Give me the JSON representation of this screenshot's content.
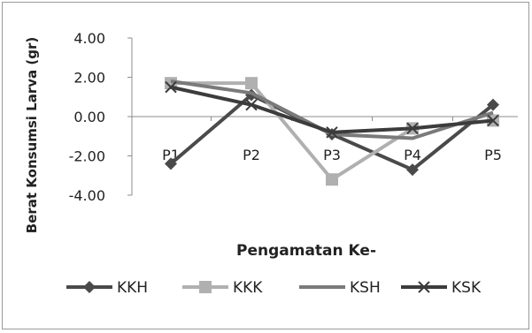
{
  "chart_data": {
    "type": "line",
    "title": "",
    "xlabel": "Pengamatan Ke-",
    "ylabel": "Berat Konsumsi Larva (gr)",
    "categories": [
      "P1",
      "P2",
      "P3",
      "P4",
      "P5"
    ],
    "ylim": [
      -4,
      4
    ],
    "yticks": [
      "4.00",
      "2.00",
      "0.00",
      "-2.00",
      "-4.00"
    ],
    "grid": false,
    "legend_position": "bottom",
    "series": [
      {
        "name": "KKH",
        "values": [
          -2.4,
          1.1,
          -0.9,
          -2.7,
          0.6
        ],
        "color": "#4a4a4a",
        "marker": "diamond"
      },
      {
        "name": "KKK",
        "values": [
          1.7,
          1.7,
          -3.2,
          -0.6,
          -0.2
        ],
        "color": "#b0b0b0",
        "marker": "square"
      },
      {
        "name": "KSH",
        "values": [
          1.8,
          1.2,
          -0.9,
          -1.1,
          0.2
        ],
        "color": "#7a7a7a",
        "marker": "none"
      },
      {
        "name": "KSK",
        "values": [
          1.5,
          0.6,
          -0.8,
          -0.6,
          -0.2
        ],
        "color": "#3c3c3c",
        "marker": "x"
      }
    ]
  }
}
